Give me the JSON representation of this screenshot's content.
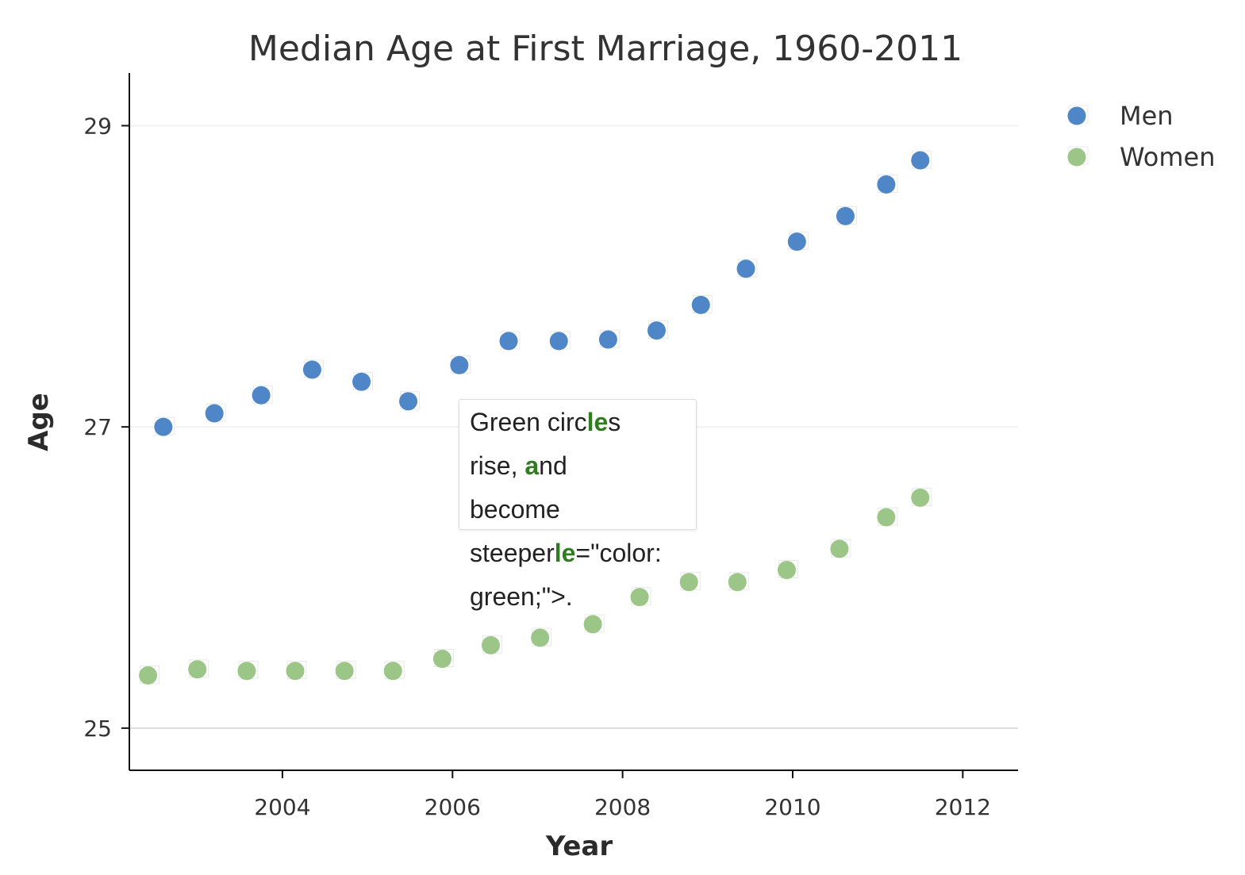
{
  "chart_data": {
    "type": "scatter",
    "title": "Median Age at First Marriage, 1960-2011",
    "xlabel": "Year",
    "ylabel": "Age",
    "xlim": [
      2002.2,
      2012.65
    ],
    "ylim": [
      24.72,
      29.35
    ],
    "x_ticks": [
      2004,
      2006,
      2008,
      2010,
      2012
    ],
    "x_tick_labels": [
      "2004",
      "2006",
      "2008",
      "2010",
      "2012"
    ],
    "y_ticks": [
      25,
      27,
      29
    ],
    "y_tick_labels": [
      "25",
      "27",
      "29"
    ],
    "grid": "horizontal",
    "legend_position": "top-right",
    "series": [
      {
        "name": "Men",
        "color": "#4e86c7",
        "points": [
          [
            2002.6,
            27.0
          ],
          [
            2003.2,
            27.09
          ],
          [
            2003.75,
            27.21
          ],
          [
            2004.35,
            27.38
          ],
          [
            2004.93,
            27.3
          ],
          [
            2005.48,
            27.17
          ],
          [
            2006.08,
            27.41
          ],
          [
            2006.66,
            27.57
          ],
          [
            2007.25,
            27.57
          ],
          [
            2007.83,
            27.58
          ],
          [
            2008.4,
            27.64
          ],
          [
            2008.92,
            27.81
          ],
          [
            2009.45,
            28.05
          ],
          [
            2010.05,
            28.23
          ],
          [
            2010.62,
            28.4
          ],
          [
            2011.1,
            28.61
          ],
          [
            2011.5,
            28.77
          ]
        ]
      },
      {
        "name": "Women",
        "color": "#9cc688",
        "points": [
          [
            2002.42,
            25.35
          ],
          [
            2003.0,
            25.39
          ],
          [
            2003.58,
            25.38
          ],
          [
            2004.15,
            25.38
          ],
          [
            2004.73,
            25.38
          ],
          [
            2005.3,
            25.38
          ],
          [
            2005.88,
            25.46
          ],
          [
            2006.45,
            25.55
          ],
          [
            2007.03,
            25.6
          ],
          [
            2007.65,
            25.69
          ],
          [
            2008.2,
            25.87
          ],
          [
            2008.78,
            25.97
          ],
          [
            2009.35,
            25.97
          ],
          [
            2009.93,
            26.05
          ],
          [
            2010.55,
            26.19
          ],
          [
            2011.1,
            26.4
          ],
          [
            2011.5,
            26.53
          ]
        ]
      }
    ]
  },
  "annotation": {
    "segments": [
      {
        "text": "Green circ",
        "hl": false
      },
      {
        "text": "le",
        "hl": true
      },
      {
        "text": "s\nrise, ",
        "hl": false
      },
      {
        "text": "a",
        "hl": true
      },
      {
        "text": "nd\nbecome\nsteeper",
        "hl": false
      },
      {
        "text": "le",
        "hl": true
      },
      {
        "text": "=\"color:\ngreen;\">.",
        "hl": false
      }
    ]
  }
}
